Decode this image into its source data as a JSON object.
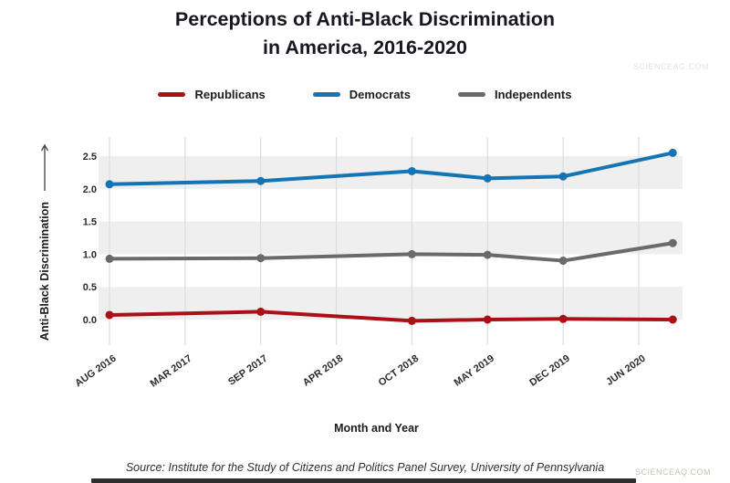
{
  "title_line1": "Perceptions of Anti-Black Discrimination",
  "title_line2": "in America, 2016-2020",
  "source": "Source: Institute for the Study of Citizens and Politics Panel Survey, University of Pennsylvania",
  "watermark_top": "SCIENCEAG.COM",
  "watermark_bottom": "SCIENCEAQ.COM",
  "chart_data": {
    "type": "line",
    "title": "Perceptions of Anti-Black Discrimination in America, 2016-2020",
    "xlabel": "Month and Year",
    "ylabel": "Anti-Black Discrimination",
    "x_ticks": [
      "AUG 2016",
      "MAR 2017",
      "SEP 2017",
      "APR 2018",
      "OCT 2018",
      "MAY 2019",
      "DEC 2019",
      "JUN 2020"
    ],
    "y_ticks": [
      0.0,
      0.5,
      1.0,
      1.5,
      2.0,
      2.5
    ],
    "ylim": [
      -0.4,
      2.8
    ],
    "grid": "vertical-gridlines-with-horizontal-shaded-bands",
    "band_pairs": [
      [
        0.0,
        0.5
      ],
      [
        1.0,
        1.5
      ],
      [
        2.0,
        2.5
      ]
    ],
    "legend_position": "top",
    "x_positions_tick_units": [
      0,
      2,
      4,
      5,
      6,
      7.45
    ],
    "series": [
      {
        "name": "Republicans",
        "color": "#ab1016",
        "values": [
          0.07,
          0.12,
          -0.02,
          0.0,
          0.01,
          0.0
        ]
      },
      {
        "name": "Democrats",
        "color": "#1474b4",
        "values": [
          2.07,
          2.12,
          2.27,
          2.16,
          2.19,
          2.55
        ]
      },
      {
        "name": "Independents",
        "color": "#6a6a6a",
        "values": [
          0.93,
          0.94,
          1.0,
          0.99,
          0.9,
          1.17
        ]
      }
    ],
    "colors": {
      "band": "#efefef",
      "gridline": "#dcdcdc",
      "tick_text": "#2b2b2b"
    }
  }
}
